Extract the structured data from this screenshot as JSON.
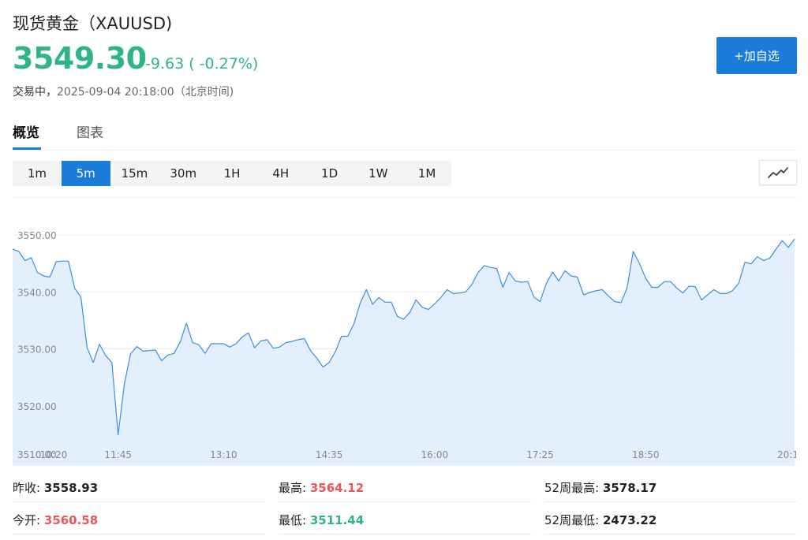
{
  "header": {
    "title": "现货黄金（XAUUSD)",
    "price": "3549.30",
    "change": "-9.63 ( -0.27%)",
    "status_label": "交易中，",
    "timestamp": "2025-09-04 20:18:00（北京时间)",
    "add_button": "+加自选"
  },
  "tabs": [
    {
      "label": "概览",
      "active": true
    },
    {
      "label": "图表",
      "active": false
    }
  ],
  "intervals": [
    {
      "label": "1m",
      "active": false
    },
    {
      "label": "5m",
      "active": true
    },
    {
      "label": "15m",
      "active": false
    },
    {
      "label": "30m",
      "active": false
    },
    {
      "label": "1H",
      "active": false
    },
    {
      "label": "4H",
      "active": false
    },
    {
      "label": "1D",
      "active": false
    },
    {
      "label": "1W",
      "active": false
    },
    {
      "label": "1M",
      "active": false
    }
  ],
  "chart_type_icon": "line-chart-icon",
  "colors": {
    "accent": "#1b7bd8",
    "down": "#2fb48a",
    "up": "#f0555c",
    "line": "#3b8fe0",
    "area": "#e3effc"
  },
  "chart_data": {
    "type": "area",
    "ylim": [
      3510,
      3553
    ],
    "y_ticks": [
      "3550.00",
      "3540.00",
      "3530.00",
      "3520.00",
      "3510.00"
    ],
    "x_ticks": [
      "10:20",
      "11:45",
      "13:10",
      "14:35",
      "16:00",
      "17:25",
      "18:50",
      "20:1"
    ],
    "grid": true,
    "values": [
      3547.5,
      3547.1,
      3545.5,
      3546.0,
      3543.4,
      3542.8,
      3542.6,
      3545.3,
      3545.4,
      3545.4,
      3540.6,
      3539.1,
      3530.2,
      3527.6,
      3530.8,
      3528.8,
      3527.6,
      3514.9,
      3523.8,
      3529.1,
      3530.4,
      3529.6,
      3529.7,
      3529.8,
      3527.9,
      3528.9,
      3529.2,
      3531.2,
      3534.5,
      3531.1,
      3530.7,
      3529.2,
      3530.9,
      3530.9,
      3530.9,
      3530.3,
      3530.9,
      3532.1,
      3532.8,
      3530.2,
      3531.4,
      3531.6,
      3530.1,
      3530.3,
      3531.1,
      3531.3,
      3531.6,
      3531.8,
      3529.7,
      3528.4,
      3526.8,
      3527.6,
      3529.5,
      3532.2,
      3532.2,
      3534.4,
      3538.0,
      3540.4,
      3537.8,
      3539.0,
      3538.2,
      3538.2,
      3535.7,
      3535.2,
      3536.4,
      3538.6,
      3537.3,
      3536.9,
      3537.9,
      3539.0,
      3540.4,
      3539.7,
      3539.8,
      3540.0,
      3541.3,
      3543.4,
      3544.6,
      3544.3,
      3544.1,
      3540.8,
      3543.4,
      3541.9,
      3541.7,
      3541.8,
      3539.1,
      3538.3,
      3541.5,
      3543.5,
      3541.9,
      3543.7,
      3542.8,
      3542.6,
      3539.5,
      3539.9,
      3540.2,
      3540.4,
      3539.3,
      3538.3,
      3538.1,
      3540.6,
      3547.1,
      3545.0,
      3542.4,
      3540.8,
      3540.8,
      3541.8,
      3541.8,
      3540.7,
      3539.8,
      3541.0,
      3540.9,
      3538.6,
      3539.5,
      3540.4,
      3539.7,
      3539.7,
      3540.2,
      3541.5,
      3545.2,
      3544.9,
      3546.2,
      3545.5,
      3545.9,
      3547.5,
      3549.0,
      3547.8,
      3549.3
    ]
  },
  "stats": [
    {
      "label": "昨收:",
      "value": "3558.93",
      "tone": "neutral"
    },
    {
      "label": "最高:",
      "value": "3564.12",
      "tone": "up"
    },
    {
      "label": "52周最高:",
      "value": "3578.17",
      "tone": "neutral"
    },
    {
      "label": "今开:",
      "value": "3560.58",
      "tone": "up"
    },
    {
      "label": "最低:",
      "value": "3511.44",
      "tone": "down"
    },
    {
      "label": "52周最低:",
      "value": "2473.22",
      "tone": "neutral"
    }
  ]
}
